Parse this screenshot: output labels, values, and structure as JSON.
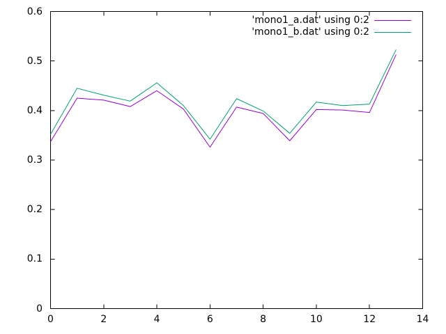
{
  "chart_data": {
    "type": "line",
    "title": "",
    "xlabel": "",
    "ylabel": "",
    "x": [
      0,
      1,
      2,
      3,
      4,
      5,
      6,
      7,
      8,
      9,
      10,
      11,
      12,
      13
    ],
    "series": [
      {
        "name": "'mono1_a.dat' using 0:2",
        "color": "#9400d3",
        "values": [
          0.337,
          0.425,
          0.421,
          0.408,
          0.44,
          0.403,
          0.326,
          0.407,
          0.394,
          0.339,
          0.402,
          0.401,
          0.396,
          0.513
        ]
      },
      {
        "name": "'mono1_b.dat' using 0:2",
        "color": "#009e73",
        "values": [
          0.352,
          0.445,
          0.431,
          0.419,
          0.456,
          0.41,
          0.342,
          0.424,
          0.399,
          0.354,
          0.417,
          0.41,
          0.413,
          0.523
        ]
      }
    ],
    "xlim": [
      0,
      14
    ],
    "ylim": [
      0,
      0.6
    ],
    "x_ticks": [
      0,
      2,
      4,
      6,
      8,
      10,
      12,
      14
    ],
    "x_tick_labels": [
      "0",
      "2",
      "4",
      "6",
      "8",
      "10",
      "12",
      "14"
    ],
    "y_ticks": [
      0,
      0.1,
      0.2,
      0.3,
      0.4,
      0.5,
      0.6
    ],
    "y_tick_labels": [
      "0",
      "0.1",
      "0.2",
      "0.3",
      "0.4",
      "0.5",
      "0.6"
    ],
    "grid": false,
    "legend_position": "top-right",
    "axis_color": "#000000",
    "background_color": "#ffffff"
  }
}
